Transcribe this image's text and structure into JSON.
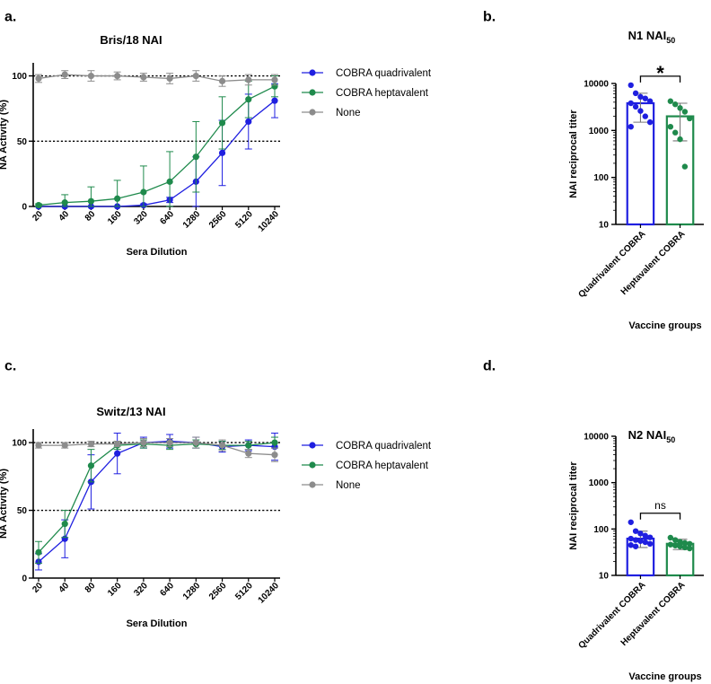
{
  "chart_data": [
    {
      "id": "a",
      "panel_label": "a.",
      "type": "line",
      "title": "Bris/18 NAI",
      "xlabel": "Sera Dilution",
      "ylabel": "NA Activity (%)",
      "categories": [
        "20",
        "40",
        "80",
        "160",
        "320",
        "640",
        "1280",
        "2560",
        "5120",
        "10240"
      ],
      "yticks": [
        "0",
        "50",
        "100"
      ],
      "ylim": [
        0,
        110
      ],
      "reference_lines": [
        50,
        100
      ],
      "series": [
        {
          "name": "COBRA quadrivalent",
          "color": "#1f1fe0",
          "values": [
            0,
            0,
            0,
            0,
            1,
            5,
            19,
            41,
            65,
            81
          ],
          "errors": [
            0,
            0,
            0,
            0,
            1,
            2,
            19,
            25,
            21,
            13
          ]
        },
        {
          "name": "COBRA heptavalent",
          "color": "#1f8a4c",
          "values": [
            1,
            3,
            4,
            6,
            11,
            19,
            38,
            64,
            82,
            92
          ],
          "errors": [
            1,
            6,
            11,
            14,
            20,
            23,
            27,
            20,
            14,
            8
          ]
        },
        {
          "name": "None",
          "color": "#8c8c8c",
          "values": [
            98,
            101,
            100,
            100,
            99,
            98,
            100,
            96,
            97,
            97
          ],
          "errors": [
            3,
            3,
            4,
            3,
            3,
            4,
            4,
            4,
            4,
            4
          ]
        }
      ]
    },
    {
      "id": "b",
      "panel_label": "b.",
      "type": "bar",
      "title_main": "N1 NAI",
      "title_sub": "50",
      "xlabel": "Vaccine groups",
      "ylabel": "NAI reciprocal titer",
      "yscale": "log",
      "ylim": [
        10,
        10000
      ],
      "yticks": [
        "10",
        "100",
        "1000",
        "10000"
      ],
      "categories": [
        "Quadrivalent COBRA",
        "Heptavalent COBRA"
      ],
      "colors": [
        "#1f1fe0",
        "#1f8a4c"
      ],
      "values": [
        3800,
        2000
      ],
      "err_low": [
        1500,
        600
      ],
      "err_high": [
        6200,
        3800
      ],
      "points": [
        [
          9200,
          6200,
          5200,
          4800,
          4200,
          3800,
          3200,
          2600,
          2000,
          1500,
          1200
        ],
        [
          4200,
          3600,
          3000,
          2500,
          1800,
          1200,
          900,
          650,
          170
        ]
      ],
      "significance": "*"
    },
    {
      "id": "c",
      "panel_label": "c.",
      "type": "line",
      "title": "Switz/13 NAI",
      "xlabel": "Sera Dilution",
      "ylabel": "NA Activity (%)",
      "categories": [
        "20",
        "40",
        "80",
        "160",
        "320",
        "640",
        "1280",
        "2560",
        "5120",
        "10240"
      ],
      "yticks": [
        "0",
        "50",
        "100"
      ],
      "ylim": [
        0,
        110
      ],
      "reference_lines": [
        50,
        100
      ],
      "series": [
        {
          "name": "COBRA quadrivalent",
          "color": "#1f1fe0",
          "values": [
            12,
            29,
            71,
            92,
            100,
            101,
            100,
            97,
            98,
            97
          ],
          "errors": [
            6,
            14,
            20,
            15,
            4,
            5,
            4,
            4,
            4,
            10
          ]
        },
        {
          "name": "COBRA heptavalent",
          "color": "#1f8a4c",
          "values": [
            19,
            40,
            83,
            98,
            99,
            98,
            99,
            98,
            98,
            100
          ],
          "errors": [
            8,
            10,
            12,
            3,
            3,
            3,
            3,
            3,
            3,
            4
          ]
        },
        {
          "name": "None",
          "color": "#8c8c8c",
          "values": [
            98,
            98,
            99,
            99,
            100,
            100,
            100,
            98,
            92,
            91
          ],
          "errors": [
            2,
            2,
            2,
            2,
            3,
            3,
            4,
            4,
            3,
            5
          ]
        }
      ]
    },
    {
      "id": "d",
      "panel_label": "d.",
      "type": "bar",
      "title_main": "N2 NAI",
      "title_sub": "50",
      "xlabel": "Vaccine groups",
      "ylabel": "NAI reciprocal titer",
      "yscale": "log",
      "ylim": [
        10,
        10000
      ],
      "yticks": [
        "10",
        "100",
        "1000",
        "10000"
      ],
      "categories": [
        "Quadrivalent COBRA",
        "Heptavalent COBRA"
      ],
      "colors": [
        "#1f1fe0",
        "#1f8a4c"
      ],
      "values": [
        62,
        48
      ],
      "err_low": [
        40,
        36
      ],
      "err_high": [
        90,
        60
      ],
      "points": [
        [
          140,
          90,
          80,
          72,
          66,
          62,
          58,
          55,
          52,
          48,
          45,
          42
        ],
        [
          65,
          58,
          53,
          50,
          48,
          46,
          44,
          42,
          40,
          38
        ]
      ],
      "significance": "ns"
    }
  ]
}
